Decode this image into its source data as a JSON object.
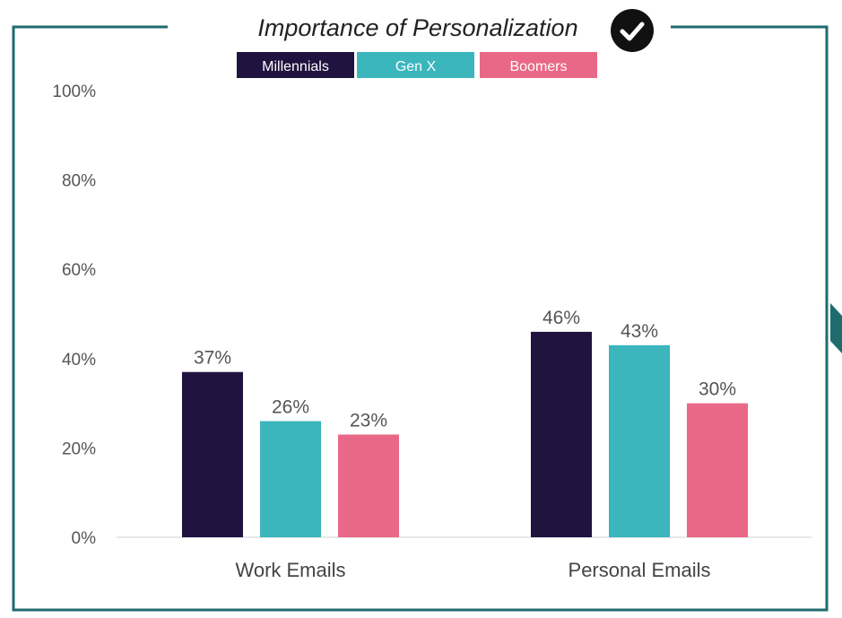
{
  "chart_data": {
    "type": "bar",
    "title": "Importance of Personalization",
    "categories": [
      "Work Emails",
      "Personal Emails"
    ],
    "series": [
      {
        "name": "Millennials",
        "values": [
          37,
          46
        ],
        "color": "#20133f"
      },
      {
        "name": "Gen X",
        "values": [
          26,
          43
        ],
        "color": "#3bb6bc"
      },
      {
        "name": "Boomers",
        "values": [
          23,
          30
        ],
        "color": "#e96887"
      }
    ],
    "value_labels": [
      [
        "37%",
        "46%"
      ],
      [
        "26%",
        "43%"
      ],
      [
        "23%",
        "30%"
      ]
    ],
    "y_ticks": [
      "0%",
      "20%",
      "40%",
      "60%",
      "80%",
      "100%"
    ],
    "ylim": [
      0,
      100
    ],
    "xlabel": "",
    "ylabel": "",
    "legend_position": "top-center",
    "grid": false
  },
  "title_icon": "check-circle-icon",
  "colors": {
    "frame": "#1f6b6e",
    "axis": "#e0e0e0"
  }
}
